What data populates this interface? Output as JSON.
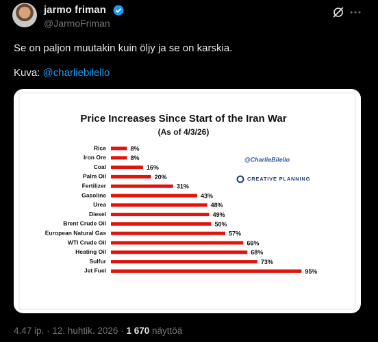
{
  "tweet": {
    "author_name": "jarmo friman",
    "author_handle": "@JarmoFriman",
    "text": "Se on paljon muutakin kuin öljy ja se on karskia.",
    "image_prefix": "Kuva:",
    "image_credit": "@charliebilello",
    "time": "4.47 ip.",
    "separator": "·",
    "date": "12. huhtik. 2026",
    "views": "1 670",
    "views_label": "näyttöä"
  },
  "chart_data": {
    "type": "bar",
    "orientation": "horizontal",
    "title": "Price Increases Since Start of the Iran War",
    "subtitle": "(As of 4/3/26)",
    "annotations": [
      "@CharlieBilello",
      "CREATIVE PLANNING"
    ],
    "categories": [
      "Rice",
      "Iron Ore",
      "Coal",
      "Palm Oil",
      "Fertilizer",
      "Gasoline",
      "Urea",
      "Diesel",
      "Brent Crude Oil",
      "European Natural Gas",
      "WTI Crude Oil",
      "Heating Oil",
      "Sulfur",
      "Jet Fuel"
    ],
    "values": [
      8,
      8,
      16,
      20,
      31,
      43,
      48,
      49,
      50,
      57,
      66,
      68,
      73,
      95
    ],
    "value_labels": [
      "8%",
      "8%",
      "16%",
      "20%",
      "31%",
      "43%",
      "48%",
      "49%",
      "50%",
      "57%",
      "66%",
      "68%",
      "73%",
      "95%"
    ],
    "color": "#e3120b"
  }
}
